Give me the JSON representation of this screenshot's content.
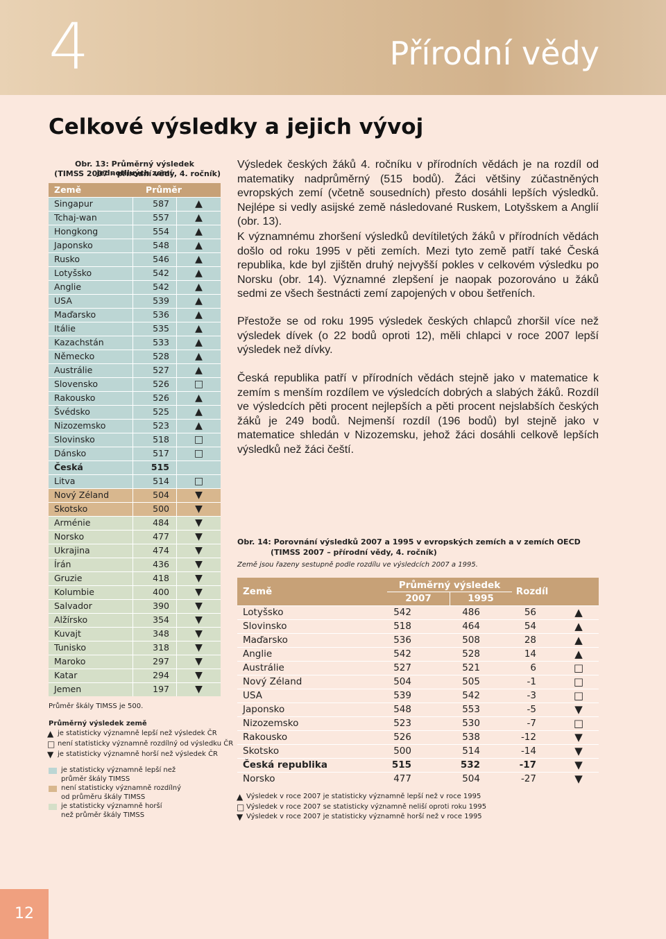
{
  "header": {
    "number": "4",
    "title": "Přírodní vědy"
  },
  "heading": "Celkové výsledky a jejich vývoj",
  "fig13": {
    "caption": [
      "Obr. 13: Průměrný výsledek jednotlivých zemí",
      "(TIMSS 2007 – přírodní vědy, 4. ročník)"
    ],
    "headers": [
      "Země",
      "Průměr"
    ],
    "rows": [
      {
        "name": "Singapur",
        "value": 587,
        "symbol": "▲",
        "color": "#bcd6d4"
      },
      {
        "name": "Tchaj-wan",
        "value": 557,
        "symbol": "▲",
        "color": "#bcd6d4"
      },
      {
        "name": "Hongkong",
        "value": 554,
        "symbol": "▲",
        "color": "#bcd6d4"
      },
      {
        "name": "Japonsko",
        "value": 548,
        "symbol": "▲",
        "color": "#bcd6d4"
      },
      {
        "name": "Rusko",
        "value": 546,
        "symbol": "▲",
        "color": "#bcd6d4"
      },
      {
        "name": "Lotyšsko",
        "value": 542,
        "symbol": "▲",
        "color": "#bcd6d4"
      },
      {
        "name": "Anglie",
        "value": 542,
        "symbol": "▲",
        "color": "#bcd6d4"
      },
      {
        "name": "USA",
        "value": 539,
        "symbol": "▲",
        "color": "#bcd6d4"
      },
      {
        "name": "Maďarsko",
        "value": 536,
        "symbol": "▲",
        "color": "#bcd6d4"
      },
      {
        "name": "Itálie",
        "value": 535,
        "symbol": "▲",
        "color": "#bcd6d4"
      },
      {
        "name": "Kazachstán",
        "value": 533,
        "symbol": "▲",
        "color": "#bcd6d4"
      },
      {
        "name": "Německo",
        "value": 528,
        "symbol": "▲",
        "color": "#bcd6d4"
      },
      {
        "name": "Austrálie",
        "value": 527,
        "symbol": "▲",
        "color": "#bcd6d4"
      },
      {
        "name": "Slovensko",
        "value": 526,
        "symbol": "□",
        "color": "#bcd6d4"
      },
      {
        "name": "Rakousko",
        "value": 526,
        "symbol": "▲",
        "color": "#bcd6d4"
      },
      {
        "name": "Švédsko",
        "value": 525,
        "symbol": "▲",
        "color": "#bcd6d4"
      },
      {
        "name": "Nizozemsko",
        "value": 523,
        "symbol": "▲",
        "color": "#bcd6d4"
      },
      {
        "name": "Slovinsko",
        "value": 518,
        "symbol": "□",
        "color": "#bcd6d4"
      },
      {
        "name": "Dánsko",
        "value": 517,
        "symbol": "□",
        "color": "#bcd6d4"
      },
      {
        "name": "Česká republika",
        "value": 515,
        "symbol": "",
        "color": "#bcd6d4",
        "bold": true
      },
      {
        "name": "Litva",
        "value": 514,
        "symbol": "□",
        "color": "#bcd6d4"
      },
      {
        "name": "Nový Zéland",
        "value": 504,
        "symbol": "▼",
        "color": "#d8b78e"
      },
      {
        "name": "Skotsko",
        "value": 500,
        "symbol": "▼",
        "color": "#d8b78e"
      },
      {
        "name": "Arménie",
        "value": 484,
        "symbol": "▼",
        "color": "#d5dfc8"
      },
      {
        "name": "Norsko",
        "value": 477,
        "symbol": "▼",
        "color": "#d5dfc8"
      },
      {
        "name": "Ukrajina",
        "value": 474,
        "symbol": "▼",
        "color": "#d5dfc8"
      },
      {
        "name": "Írán",
        "value": 436,
        "symbol": "▼",
        "color": "#d5dfc8"
      },
      {
        "name": "Gruzie",
        "value": 418,
        "symbol": "▼",
        "color": "#d5dfc8"
      },
      {
        "name": "Kolumbie",
        "value": 400,
        "symbol": "▼",
        "color": "#d5dfc8"
      },
      {
        "name": "Salvador",
        "value": 390,
        "symbol": "▼",
        "color": "#d5dfc8"
      },
      {
        "name": "Alžírsko",
        "value": 354,
        "symbol": "▼",
        "color": "#d5dfc8"
      },
      {
        "name": "Kuvajt",
        "value": 348,
        "symbol": "▼",
        "color": "#d5dfc8"
      },
      {
        "name": "Tunisko",
        "value": 318,
        "symbol": "▼",
        "color": "#d5dfc8"
      },
      {
        "name": "Maroko",
        "value": 297,
        "symbol": "▼",
        "color": "#d5dfc8"
      },
      {
        "name": "Katar",
        "value": 294,
        "symbol": "▼",
        "color": "#d5dfc8"
      },
      {
        "name": "Jemen",
        "value": 197,
        "symbol": "▼",
        "color": "#d5dfc8"
      }
    ],
    "note": "Průměr škály TIMSS je 500.",
    "legend_title": "Průměrný výsledek země",
    "legend": [
      {
        "symbol": "▲",
        "text": "je statisticky významně lepší než výsledek ČR"
      },
      {
        "symbol": "□",
        "text": "není statisticky významně rozdílný od výsledku ČR"
      },
      {
        "symbol": "▼",
        "text": "je statisticky významně horší než výsledek ČR"
      }
    ],
    "color_legend": [
      {
        "color": "#bcd6d4",
        "lines": [
          "je statisticky významně lepší než",
          "průměr škály TIMSS"
        ]
      },
      {
        "color": "#d8b78e",
        "lines": [
          "není statisticky významně rozdílný",
          "od průměru škály TIMSS"
        ]
      },
      {
        "color": "#d5dfc8",
        "lines": [
          "je statisticky významně horší",
          "než průměr škály TIMSS"
        ]
      }
    ]
  },
  "paragraphs": [
    "Výsledek českých žáků 4. ročníku v přírodních vědách je na rozdíl od matematiky nadprůměrný (515 bodů). Žáci většiny zúčastněných evropských zemí (včetně sousedních) přesto dosáhli lepších výsledků. Nejlépe si vedly asijské země následované Ruskem, Lotyšskem a Anglií (obr. 13).",
    "K významnému zhoršení výsledků devítiletých žáků v přírodních vědách došlo od roku 1995 v pěti zemích. Mezi tyto země patří také Česká republika, kde byl zjištěn druhý nejvyšší pokles v celkovém výsledku po Norsku (obr. 14). Významné zlepšení je naopak pozorováno u žáků sedmi ze všech šestnácti zemí zapojených v obou šetřeních.",
    "Přestože se od roku 1995 výsledek českých chlapců zhoršil více než výsledek dívek (o 22 bodů oproti 12), měli chlapci v roce 2007 lepší výsledek než dívky.",
    "Česká republika patří v přírodních vědách stejně jako v matematice k zemím s menším rozdílem ve výsledcích dobrých a slabých žáků. Rozdíl ve výsledcích pěti procent nejlepších a pěti procent nejslabších českých žáků je 249 bodů. Nejmenší rozdíl (196 bodů) byl stejně jako v matematice shledán v Nizozemsku, jehož žáci dosáhli celkově lepších výsledků než žáci čeští."
  ],
  "fig14": {
    "caption": [
      "Obr. 14: Porovnání výsledků 2007 a 1995 v evropských zemích a v zemích OECD",
      "(TIMSS 2007 – přírodní vědy, 4. ročník)"
    ],
    "subcaption": "Země jsou řazeny sestupně podle rozdílu ve výsledcích 2007 a 1995.",
    "headers": {
      "country": "Země",
      "group": "Průměrný výsledek",
      "y2007": "2007",
      "y1995": "1995",
      "diff": "Rozdíl"
    },
    "rows": [
      {
        "name": "Lotyšsko",
        "v2007": 542,
        "v1995": 486,
        "diff": 56,
        "symbol": "▲"
      },
      {
        "name": "Slovinsko",
        "v2007": 518,
        "v1995": 464,
        "diff": 54,
        "symbol": "▲"
      },
      {
        "name": "Maďarsko",
        "v2007": 536,
        "v1995": 508,
        "diff": 28,
        "symbol": "▲"
      },
      {
        "name": "Anglie",
        "v2007": 542,
        "v1995": 528,
        "diff": 14,
        "symbol": "▲"
      },
      {
        "name": "Austrálie",
        "v2007": 527,
        "v1995": 521,
        "diff": 6,
        "symbol": "□"
      },
      {
        "name": "Nový Zéland",
        "v2007": 504,
        "v1995": 505,
        "diff": -1,
        "symbol": "□"
      },
      {
        "name": "USA",
        "v2007": 539,
        "v1995": 542,
        "diff": -3,
        "symbol": "□"
      },
      {
        "name": "Japonsko",
        "v2007": 548,
        "v1995": 553,
        "diff": -5,
        "symbol": "▼"
      },
      {
        "name": "Nizozemsko",
        "v2007": 523,
        "v1995": 530,
        "diff": -7,
        "symbol": "□"
      },
      {
        "name": "Rakousko",
        "v2007": 526,
        "v1995": 538,
        "diff": -12,
        "symbol": "▼"
      },
      {
        "name": "Skotsko",
        "v2007": 500,
        "v1995": 514,
        "diff": -14,
        "symbol": "▼"
      },
      {
        "name": "Česká republika",
        "v2007": 515,
        "v1995": 532,
        "diff": -17,
        "symbol": "▼",
        "bold": true
      },
      {
        "name": "Norsko",
        "v2007": 477,
        "v1995": 504,
        "diff": -27,
        "symbol": "▼"
      }
    ],
    "legend": [
      {
        "symbol": "▲",
        "text": "Výsledek v roce 2007 je statisticky významně lepší než v roce 1995"
      },
      {
        "symbol": "□",
        "text": "Výsledek v roce 2007 se statisticky významně neliší oproti roku 1995"
      },
      {
        "symbol": "▼",
        "text": "Výsledek v roce 2007 je statisticky významně horší než v roce 1995"
      }
    ]
  },
  "page_number": "12"
}
